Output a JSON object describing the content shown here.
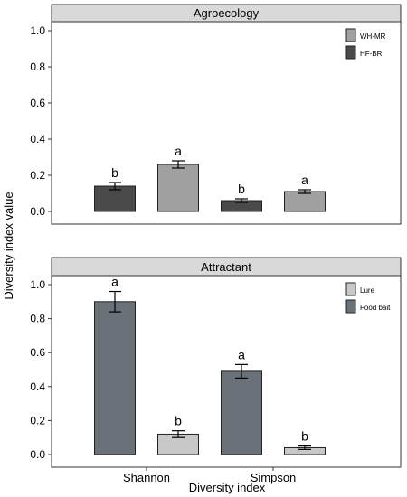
{
  "ylabel": "Diversity index value",
  "xlabel": "Diversity index",
  "x_categories": [
    "Shannon",
    "Simpson"
  ],
  "colors": {
    "strip_bg": "#d9d9d9",
    "WH-MR": "#a0a0a0",
    "HF-BR": "#4a4a4a",
    "Lure": "#c8c8c8",
    "Food bait": "#6b7178"
  },
  "chart_data": [
    {
      "type": "bar",
      "title": "Agroecology",
      "categories": [
        "Shannon",
        "Simpson"
      ],
      "ylim": [
        0,
        1.0
      ],
      "yticks": [
        0.0,
        0.2,
        0.4,
        0.6,
        0.8,
        1.0
      ],
      "legend_position": "top-right",
      "legend": [
        "WH-MR",
        "HF-BR"
      ],
      "series": [
        {
          "name": "HF-BR",
          "color_key": "HF-BR",
          "values": [
            0.14,
            0.06
          ],
          "errors": [
            0.02,
            0.01
          ],
          "labels": [
            "b",
            "b"
          ]
        },
        {
          "name": "WH-MR",
          "color_key": "WH-MR",
          "values": [
            0.26,
            0.11
          ],
          "errors": [
            0.02,
            0.01
          ],
          "labels": [
            "a",
            "a"
          ]
        }
      ]
    },
    {
      "type": "bar",
      "title": "Attractant",
      "categories": [
        "Shannon",
        "Simpson"
      ],
      "ylim": [
        0,
        1.0
      ],
      "yticks": [
        0.0,
        0.2,
        0.4,
        0.6,
        0.8,
        1.0
      ],
      "legend_position": "top-right",
      "legend": [
        "Lure",
        "Food bait"
      ],
      "series": [
        {
          "name": "Food bait",
          "color_key": "Food bait",
          "values": [
            0.9,
            0.49
          ],
          "errors": [
            0.06,
            0.04
          ],
          "labels": [
            "a",
            "a"
          ]
        },
        {
          "name": "Lure",
          "color_key": "Lure",
          "values": [
            0.12,
            0.04
          ],
          "errors": [
            0.02,
            0.01
          ],
          "labels": [
            "b",
            "b"
          ]
        }
      ]
    }
  ]
}
